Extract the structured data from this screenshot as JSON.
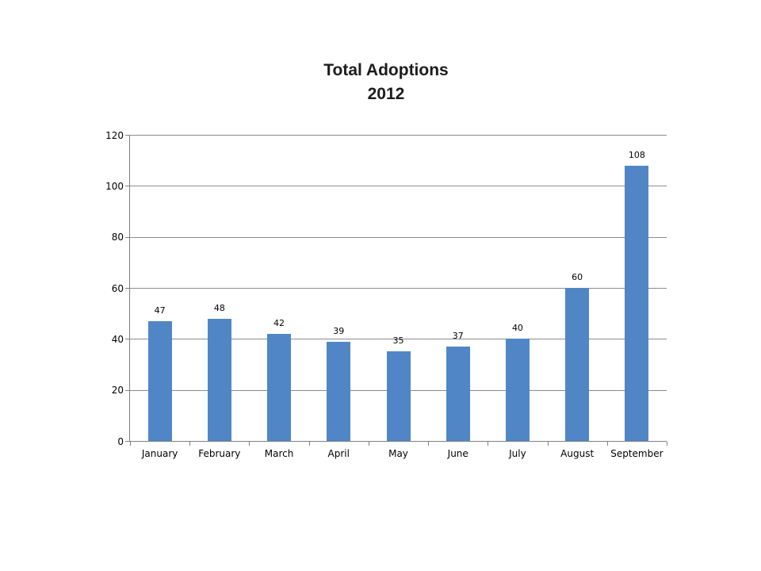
{
  "title": {
    "line1": "Total Adoptions",
    "line2": "2012"
  },
  "chart_data": {
    "type": "bar",
    "title": "Total Adoptions 2012",
    "categories": [
      "January",
      "February",
      "March",
      "April",
      "May",
      "June",
      "July",
      "August",
      "September"
    ],
    "values": [
      47,
      48,
      42,
      39,
      35,
      37,
      40,
      60,
      108
    ],
    "data_labels": [
      "47",
      "48",
      "42",
      "39",
      "35",
      "37",
      "40",
      "60",
      "108"
    ],
    "xlabel": "",
    "ylabel": "",
    "ylim": [
      0,
      120
    ],
    "yticks": [
      0,
      20,
      40,
      60,
      80,
      100,
      120
    ],
    "grid": true,
    "legend": "none",
    "colors": {
      "bar": "#5086C6",
      "gridline": "#8c8c8c",
      "axis": "#808080",
      "text": "#000000",
      "title": "#1c1c1c",
      "background": "#ffffff"
    }
  }
}
